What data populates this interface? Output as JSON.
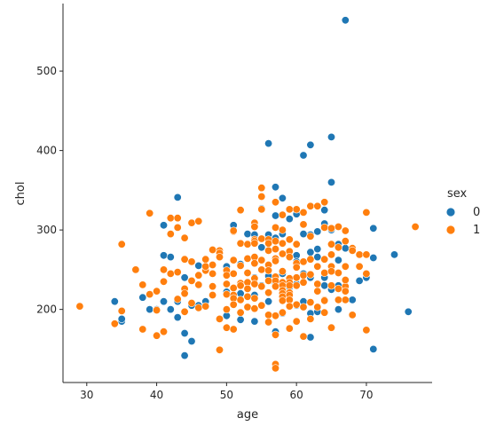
{
  "chart_data": {
    "type": "scatter",
    "xlabel": "age",
    "ylabel": "chol",
    "xlim": [
      26.6,
      79.4
    ],
    "ylim": [
      108,
      585
    ],
    "x_ticks": [
      30,
      40,
      50,
      60,
      70
    ],
    "y_ticks": [
      200,
      300,
      400,
      500
    ],
    "grid": false,
    "legend": {
      "title": "sex",
      "placement": "right",
      "entries": [
        {
          "label": "0",
          "color": "#1f77b4"
        },
        {
          "label": "1",
          "color": "#ff7f0e"
        }
      ]
    },
    "series": [
      {
        "key": "0",
        "color": "#1f77b4",
        "points": [
          [
            67,
            564
          ],
          [
            65,
            417
          ],
          [
            62,
            407
          ],
          [
            56,
            409
          ],
          [
            61,
            394
          ],
          [
            65,
            360
          ],
          [
            43,
            341
          ],
          [
            57,
            354
          ],
          [
            58,
            340
          ],
          [
            55,
            327
          ],
          [
            64,
            325
          ],
          [
            60,
            320
          ],
          [
            57,
            318
          ],
          [
            59,
            314
          ],
          [
            64,
            308
          ],
          [
            41,
            306
          ],
          [
            51,
            306
          ],
          [
            71,
            302
          ],
          [
            53,
            295
          ],
          [
            58,
            295
          ],
          [
            56,
            294
          ],
          [
            54,
            294
          ],
          [
            62,
            294
          ],
          [
            63,
            298
          ],
          [
            65,
            300
          ],
          [
            61,
            295
          ],
          [
            57,
            290
          ],
          [
            66,
            282
          ],
          [
            67,
            277
          ],
          [
            55,
            278
          ],
          [
            63,
            276
          ],
          [
            62,
            272
          ],
          [
            41,
            268
          ],
          [
            42,
            266
          ],
          [
            49,
            266
          ],
          [
            58,
            270
          ],
          [
            60,
            268
          ],
          [
            63,
            266
          ],
          [
            71,
            265
          ],
          [
            74,
            269
          ],
          [
            66,
            262
          ],
          [
            60,
            260
          ],
          [
            52,
            257
          ],
          [
            50,
            254
          ],
          [
            48,
            256
          ],
          [
            46,
            255
          ],
          [
            44,
            240
          ],
          [
            45,
            236
          ],
          [
            54,
            240
          ],
          [
            56,
            242
          ],
          [
            58,
            245
          ],
          [
            61,
            245
          ],
          [
            64,
            240
          ],
          [
            62,
            240
          ],
          [
            69,
            236
          ],
          [
            70,
            240
          ],
          [
            55,
            230
          ],
          [
            57,
            232
          ],
          [
            59,
            228
          ],
          [
            60,
            232
          ],
          [
            64,
            230
          ],
          [
            66,
            230
          ],
          [
            65,
            225
          ],
          [
            67,
            228
          ],
          [
            68,
            212
          ],
          [
            61,
            210
          ],
          [
            58,
            213
          ],
          [
            56,
            210
          ],
          [
            54,
            218
          ],
          [
            52,
            220
          ],
          [
            50,
            222
          ],
          [
            47,
            210
          ],
          [
            46,
            205
          ],
          [
            45,
            205
          ],
          [
            43,
            210
          ],
          [
            41,
            210
          ],
          [
            38,
            215
          ],
          [
            34,
            210
          ],
          [
            35,
            185
          ],
          [
            35,
            188
          ],
          [
            39,
            200
          ],
          [
            40,
            200
          ],
          [
            42,
            200
          ],
          [
            43,
            190
          ],
          [
            44,
            170
          ],
          [
            45,
            160
          ],
          [
            44,
            142
          ],
          [
            52,
            187
          ],
          [
            54,
            185
          ],
          [
            58,
            195
          ],
          [
            60,
            205
          ],
          [
            62,
            195
          ],
          [
            63,
            197
          ],
          [
            66,
            200
          ],
          [
            76,
            197
          ],
          [
            71,
            150
          ],
          [
            62,
            165
          ],
          [
            57,
            172
          ],
          [
            50,
            192
          ]
        ]
      },
      {
        "key": "1",
        "color": "#ff7f0e",
        "points": [
          [
            29,
            204
          ],
          [
            34,
            182
          ],
          [
            35,
            198
          ],
          [
            35,
            282
          ],
          [
            37,
            250
          ],
          [
            38,
            231
          ],
          [
            38,
            175
          ],
          [
            39,
            321
          ],
          [
            39,
            219
          ],
          [
            40,
            223
          ],
          [
            40,
            199
          ],
          [
            40,
            167
          ],
          [
            41,
            172
          ],
          [
            41,
            235
          ],
          [
            41,
            250
          ],
          [
            42,
            295
          ],
          [
            42,
            315
          ],
          [
            42,
            245
          ],
          [
            43,
            315
          ],
          [
            43,
            247
          ],
          [
            43,
            303
          ],
          [
            43,
            213
          ],
          [
            44,
            290
          ],
          [
            44,
            263
          ],
          [
            44,
            226
          ],
          [
            44,
            197
          ],
          [
            44,
            220
          ],
          [
            45,
            309
          ],
          [
            45,
            260
          ],
          [
            45,
            236
          ],
          [
            45,
            208
          ],
          [
            46,
            311
          ],
          [
            46,
            243
          ],
          [
            46,
            231
          ],
          [
            46,
            202
          ],
          [
            47,
            263
          ],
          [
            47,
            249
          ],
          [
            47,
            254
          ],
          [
            47,
            204
          ],
          [
            48,
            275
          ],
          [
            48,
            256
          ],
          [
            48,
            245
          ],
          [
            48,
            229
          ],
          [
            48,
            218
          ],
          [
            49,
            274
          ],
          [
            49,
            271
          ],
          [
            49,
            266
          ],
          [
            49,
            188
          ],
          [
            49,
            149
          ],
          [
            50,
            249
          ],
          [
            50,
            243
          ],
          [
            50,
            232
          ],
          [
            50,
            219
          ],
          [
            50,
            200
          ],
          [
            50,
            177
          ],
          [
            51,
            298
          ],
          [
            51,
            299
          ],
          [
            51,
            262
          ],
          [
            51,
            245
          ],
          [
            51,
            227
          ],
          [
            51,
            218
          ],
          [
            51,
            214
          ],
          [
            51,
            206
          ],
          [
            51,
            175
          ],
          [
            52,
            325
          ],
          [
            52,
            283
          ],
          [
            52,
            255
          ],
          [
            52,
            233
          ],
          [
            52,
            230
          ],
          [
            52,
            212
          ],
          [
            52,
            196
          ],
          [
            53,
            282
          ],
          [
            53,
            264
          ],
          [
            53,
            246
          ],
          [
            53,
            234
          ],
          [
            53,
            226
          ],
          [
            53,
            216
          ],
          [
            53,
            203
          ],
          [
            54,
            309
          ],
          [
            54,
            304
          ],
          [
            54,
            288
          ],
          [
            54,
            286
          ],
          [
            54,
            283
          ],
          [
            54,
            266
          ],
          [
            54,
            258
          ],
          [
            54,
            239
          ],
          [
            54,
            232
          ],
          [
            54,
            232
          ],
          [
            54,
            214
          ],
          [
            54,
            201
          ],
          [
            55,
            353
          ],
          [
            55,
            342
          ],
          [
            55,
            326
          ],
          [
            55,
            289
          ],
          [
            55,
            262
          ],
          [
            55,
            250
          ],
          [
            55,
            229
          ],
          [
            55,
            205
          ],
          [
            56,
            288
          ],
          [
            56,
            283
          ],
          [
            56,
            274
          ],
          [
            56,
            256
          ],
          [
            56,
            249
          ],
          [
            56,
            236
          ],
          [
            56,
            221
          ],
          [
            56,
            193
          ],
          [
            56,
            184
          ],
          [
            57,
            335
          ],
          [
            57,
            303
          ],
          [
            57,
            286
          ],
          [
            57,
            276
          ],
          [
            57,
            264
          ],
          [
            57,
            261
          ],
          [
            57,
            241
          ],
          [
            57,
            236
          ],
          [
            57,
            229
          ],
          [
            57,
            192
          ],
          [
            57,
            131
          ],
          [
            57,
            126
          ],
          [
            57,
            168
          ],
          [
            58,
            319
          ],
          [
            58,
            300
          ],
          [
            58,
            283
          ],
          [
            58,
            270
          ],
          [
            58,
            248
          ],
          [
            58,
            234
          ],
          [
            58,
            230
          ],
          [
            58,
            224
          ],
          [
            58,
            220
          ],
          [
            58,
            216
          ],
          [
            58,
            211
          ],
          [
            58,
            196
          ],
          [
            59,
            326
          ],
          [
            59,
            288
          ],
          [
            59,
            273
          ],
          [
            59,
            266
          ],
          [
            59,
            239
          ],
          [
            59,
            234
          ],
          [
            59,
            230
          ],
          [
            59,
            221
          ],
          [
            59,
            218
          ],
          [
            59,
            212
          ],
          [
            59,
            204
          ],
          [
            59,
            176
          ],
          [
            60,
            326
          ],
          [
            60,
            282
          ],
          [
            60,
            258
          ],
          [
            60,
            253
          ],
          [
            60,
            240
          ],
          [
            60,
            230
          ],
          [
            60,
            206
          ],
          [
            60,
            185
          ],
          [
            61,
            322
          ],
          [
            61,
            307
          ],
          [
            61,
            260
          ],
          [
            61,
            243
          ],
          [
            61,
            234
          ],
          [
            61,
            203
          ],
          [
            61,
            166
          ],
          [
            62,
            292
          ],
          [
            62,
            263
          ],
          [
            62,
            244
          ],
          [
            62,
            209
          ],
          [
            62,
            188
          ],
          [
            62,
            330
          ],
          [
            63,
            330
          ],
          [
            63,
            254
          ],
          [
            63,
            232
          ],
          [
            63,
            223
          ],
          [
            63,
            203
          ],
          [
            64,
            335
          ],
          [
            64,
            303
          ],
          [
            64,
            263
          ],
          [
            64,
            246
          ],
          [
            64,
            212
          ],
          [
            64,
            211
          ],
          [
            64,
            196
          ],
          [
            65,
            302
          ],
          [
            65,
            282
          ],
          [
            65,
            269
          ],
          [
            65,
            254
          ],
          [
            65,
            248
          ],
          [
            65,
            230
          ],
          [
            65,
            177
          ],
          [
            66,
            304
          ],
          [
            66,
            278
          ],
          [
            66,
            246
          ],
          [
            66,
            226
          ],
          [
            66,
            212
          ],
          [
            67,
            299
          ],
          [
            67,
            286
          ],
          [
            67,
            254
          ],
          [
            67,
            229
          ],
          [
            67,
            223
          ],
          [
            67,
            212
          ],
          [
            67,
            237
          ],
          [
            68,
            277
          ],
          [
            68,
            274
          ],
          [
            68,
            193
          ],
          [
            69,
            269
          ],
          [
            69,
            254
          ],
          [
            70,
            322
          ],
          [
            70,
            269
          ],
          [
            70,
            245
          ],
          [
            70,
            174
          ],
          [
            77,
            304
          ]
        ]
      }
    ]
  }
}
